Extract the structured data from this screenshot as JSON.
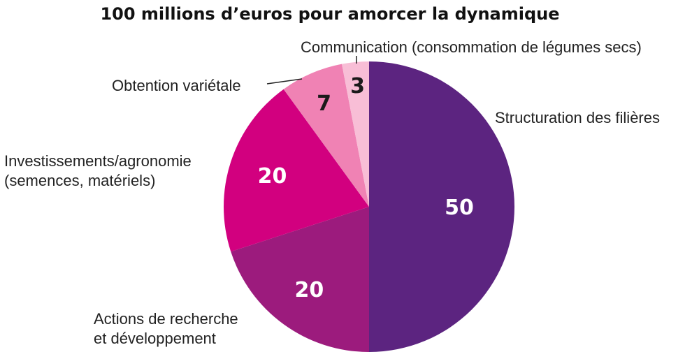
{
  "chart_data": {
    "type": "pie",
    "title": "100 millions d’euros pour amorcer la dynamique",
    "start": "12 o'clock",
    "direction": "clockwise",
    "slices": [
      {
        "value": 50,
        "value_label": "50",
        "label_lines": [
          "Structuration des filières"
        ],
        "color": "#5c2480",
        "text_color": "#ffffff"
      },
      {
        "value": 20,
        "value_label": "20",
        "label_lines": [
          "Actions de recherche",
          "et développement"
        ],
        "color": "#9c1b7d",
        "text_color": "#ffffff"
      },
      {
        "value": 20,
        "value_label": "20",
        "label_lines": [
          "Investissements/agronomie",
          "(semences, matériels)"
        ],
        "color": "#d2007f",
        "text_color": "#ffffff"
      },
      {
        "value": 7,
        "value_label": "7",
        "label_lines": [
          "Obtention variétale"
        ],
        "color": "#f082b4",
        "text_color": "#1a1a1a"
      },
      {
        "value": 3,
        "value_label": "3",
        "label_lines": [
          "Communication (consommation de légumes secs)"
        ],
        "color": "#f8bed6",
        "text_color": "#1a1a1a"
      }
    ]
  }
}
